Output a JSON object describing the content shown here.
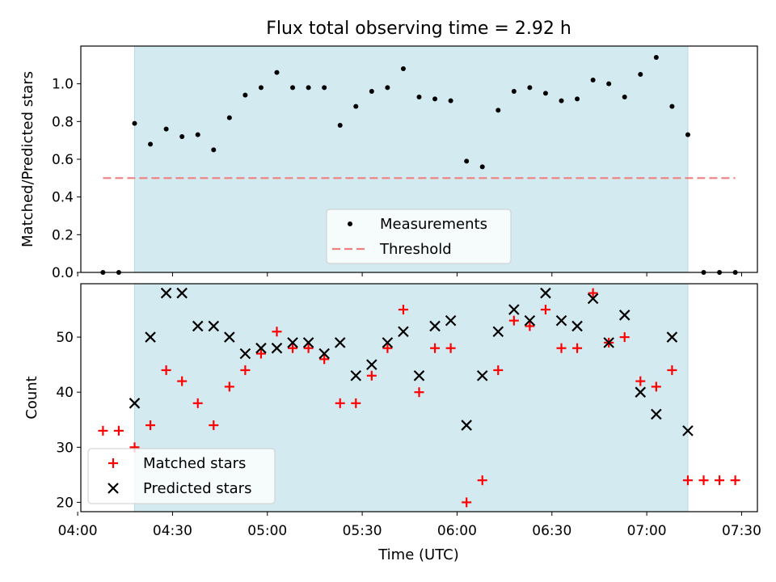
{
  "title": "Flux total observing time = 2.92 h",
  "chart_data": [
    {
      "type": "scatter",
      "ylabel": "Matched/Predicted stars",
      "xlabel": "",
      "xlim": [
        "04:01",
        "07:35"
      ],
      "ylim": [
        0,
        1.2
      ],
      "yticks": [
        "0.0",
        "0.2",
        "0.4",
        "0.6",
        "0.8",
        "1.0"
      ],
      "shaded_span": [
        "04:18",
        "07:13"
      ],
      "threshold": {
        "name": "Threshold",
        "value": 0.5,
        "from": "04:08",
        "to": "07:28"
      },
      "series": [
        {
          "name": "Measurements",
          "x": [
            "04:08",
            "04:13",
            "04:18",
            "04:23",
            "04:28",
            "04:33",
            "04:38",
            "04:43",
            "04:48",
            "04:53",
            "04:58",
            "05:03",
            "05:08",
            "05:13",
            "05:18",
            "05:23",
            "05:28",
            "05:33",
            "05:38",
            "05:43",
            "05:48",
            "05:53",
            "05:58",
            "06:03",
            "06:08",
            "06:13",
            "06:18",
            "06:23",
            "06:28",
            "06:33",
            "06:38",
            "06:43",
            "06:48",
            "06:53",
            "06:58",
            "07:03",
            "07:08",
            "07:13",
            "07:18",
            "07:23",
            "07:28"
          ],
          "y": [
            0,
            0,
            0.79,
            0.68,
            0.76,
            0.72,
            0.73,
            0.65,
            0.82,
            0.94,
            0.98,
            1.06,
            0.98,
            0.98,
            0.98,
            0.78,
            0.88,
            0.96,
            0.98,
            1.08,
            0.93,
            0.92,
            0.91,
            0.59,
            0.56,
            0.86,
            0.96,
            0.98,
            0.95,
            0.91,
            0.92,
            1.02,
            1.0,
            0.93,
            1.05,
            1.14,
            0.88,
            0.73,
            0,
            0,
            0
          ]
        }
      ],
      "legend": {
        "placement": "lower center",
        "labels": [
          "Measurements",
          "Threshold"
        ]
      }
    },
    {
      "type": "scatter",
      "xlabel": "Time (UTC)",
      "ylabel": "Count",
      "xlim": [
        "04:01",
        "07:35"
      ],
      "ylim": [
        18.3,
        59.7
      ],
      "xticks": [
        "04:00",
        "04:30",
        "05:00",
        "05:30",
        "06:00",
        "06:30",
        "07:00",
        "07:30"
      ],
      "yticks": [
        "20",
        "30",
        "40",
        "50"
      ],
      "shaded_span": [
        "04:18",
        "07:13"
      ],
      "series": [
        {
          "name": "Matched stars",
          "x": [
            "04:08",
            "04:13",
            "04:18",
            "04:23",
            "04:28",
            "04:33",
            "04:38",
            "04:43",
            "04:48",
            "04:53",
            "04:58",
            "05:03",
            "05:08",
            "05:13",
            "05:18",
            "05:23",
            "05:28",
            "05:33",
            "05:38",
            "05:43",
            "05:48",
            "05:53",
            "05:58",
            "06:03",
            "06:08",
            "06:13",
            "06:18",
            "06:23",
            "06:28",
            "06:33",
            "06:38",
            "06:43",
            "06:48",
            "06:53",
            "06:58",
            "07:03",
            "07:08",
            "07:13",
            "07:18",
            "07:23",
            "07:28"
          ],
          "y": [
            33,
            33,
            30,
            34,
            44,
            42,
            38,
            34,
            41,
            44,
            47,
            51,
            48,
            48,
            46,
            38,
            38,
            43,
            48,
            55,
            40,
            48,
            48,
            20,
            24,
            44,
            53,
            52,
            55,
            48,
            48,
            58,
            49,
            50,
            42,
            41,
            44,
            24,
            24,
            24,
            24
          ]
        },
        {
          "name": "Predicted stars",
          "x": [
            "04:18",
            "04:23",
            "04:28",
            "04:33",
            "04:38",
            "04:43",
            "04:48",
            "04:53",
            "04:58",
            "05:03",
            "05:08",
            "05:13",
            "05:18",
            "05:23",
            "05:28",
            "05:33",
            "05:38",
            "05:43",
            "05:48",
            "05:53",
            "05:58",
            "06:03",
            "06:08",
            "06:13",
            "06:18",
            "06:23",
            "06:28",
            "06:33",
            "06:38",
            "06:43",
            "06:48",
            "06:53",
            "06:58",
            "07:03",
            "07:08",
            "07:13"
          ],
          "y": [
            38,
            50,
            58,
            58,
            52,
            52,
            50,
            47,
            48,
            48,
            49,
            49,
            47,
            49,
            43,
            45,
            49,
            51,
            43,
            52,
            53,
            34,
            43,
            51,
            55,
            53,
            58,
            53,
            52,
            57,
            49,
            54,
            40,
            36,
            50,
            33
          ]
        }
      ],
      "legend": {
        "placement": "lower left",
        "labels": [
          "Matched stars",
          "Predicted stars"
        ]
      }
    }
  ],
  "colors": {
    "shade": "#d3eaf0",
    "shade_edge": "#b8dbe6",
    "measurement": "#000000",
    "threshold": "#f08080",
    "matched": "#ff0000",
    "predicted": "#000000"
  }
}
